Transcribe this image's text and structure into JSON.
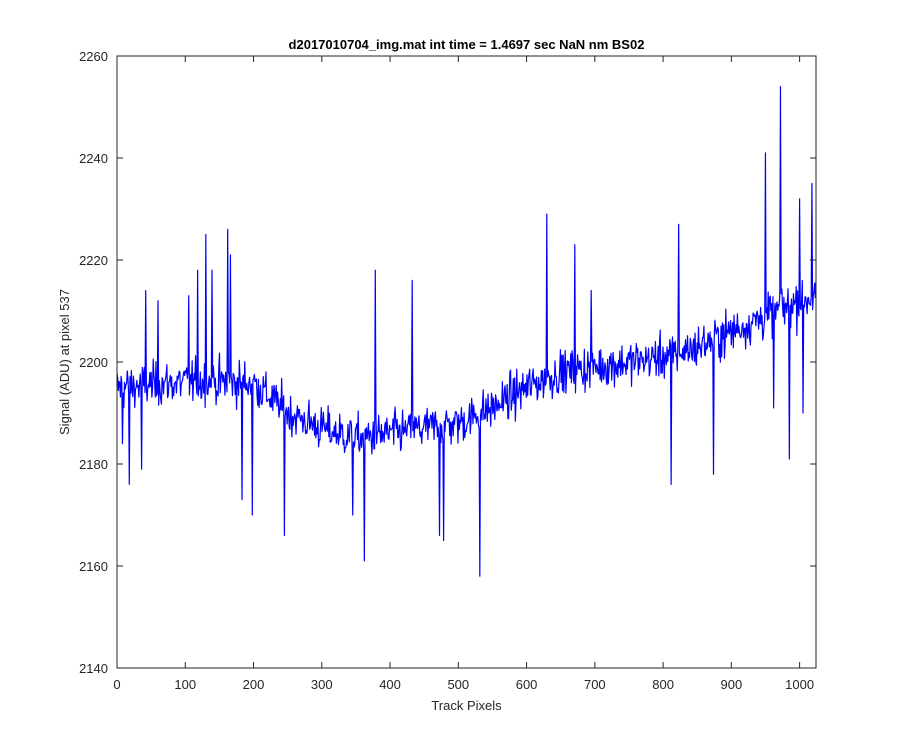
{
  "chart_data": {
    "type": "line",
    "title": "d2017010704_img.mat int time = 1.4697 sec  NaN nm BS02",
    "xlabel": "Track Pixels",
    "ylabel": "Signal (ADU) at pixel 537",
    "xlim": [
      0,
      1024
    ],
    "ylim": [
      2140,
      2260
    ],
    "xticks": [
      0,
      100,
      200,
      300,
      400,
      500,
      600,
      700,
      800,
      900,
      1000
    ],
    "yticks": [
      2140,
      2160,
      2180,
      2200,
      2220,
      2240,
      2260
    ],
    "grid": false,
    "box": true,
    "series": [
      {
        "color": "#0000ff",
        "trend_x": [
          0,
          100,
          200,
          250,
          300,
          350,
          400,
          450,
          500,
          550,
          600,
          650,
          700,
          750,
          800,
          850,
          900,
          950,
          1000,
          1024
        ],
        "trend_y": [
          2195,
          2196,
          2196,
          2190,
          2187,
          2185,
          2186,
          2187,
          2188,
          2191,
          2195,
          2198,
          2199,
          2200,
          2201,
          2203,
          2206,
          2209,
          2212,
          2213
        ],
        "spikes": [
          {
            "x": 8,
            "y": 2184
          },
          {
            "x": 18,
            "y": 2176
          },
          {
            "x": 36,
            "y": 2179
          },
          {
            "x": 42,
            "y": 2214
          },
          {
            "x": 60,
            "y": 2212
          },
          {
            "x": 105,
            "y": 2213
          },
          {
            "x": 118,
            "y": 2218
          },
          {
            "x": 130,
            "y": 2225
          },
          {
            "x": 139,
            "y": 2218
          },
          {
            "x": 162,
            "y": 2226
          },
          {
            "x": 166,
            "y": 2221
          },
          {
            "x": 183,
            "y": 2173
          },
          {
            "x": 198,
            "y": 2170
          },
          {
            "x": 245,
            "y": 2166
          },
          {
            "x": 345,
            "y": 2170
          },
          {
            "x": 362,
            "y": 2161
          },
          {
            "x": 378,
            "y": 2218
          },
          {
            "x": 432,
            "y": 2216
          },
          {
            "x": 472,
            "y": 2166
          },
          {
            "x": 478,
            "y": 2165
          },
          {
            "x": 532,
            "y": 2158
          },
          {
            "x": 630,
            "y": 2229
          },
          {
            "x": 671,
            "y": 2223
          },
          {
            "x": 695,
            "y": 2214
          },
          {
            "x": 812,
            "y": 2176
          },
          {
            "x": 823,
            "y": 2227
          },
          {
            "x": 874,
            "y": 2178
          },
          {
            "x": 950,
            "y": 2241
          },
          {
            "x": 962,
            "y": 2191
          },
          {
            "x": 972,
            "y": 2254
          },
          {
            "x": 985,
            "y": 2181
          },
          {
            "x": 1000,
            "y": 2232
          },
          {
            "x": 1005,
            "y": 2190
          },
          {
            "x": 1018,
            "y": 2235
          }
        ],
        "noise_amplitude": 16,
        "n_points": 1024
      }
    ]
  }
}
